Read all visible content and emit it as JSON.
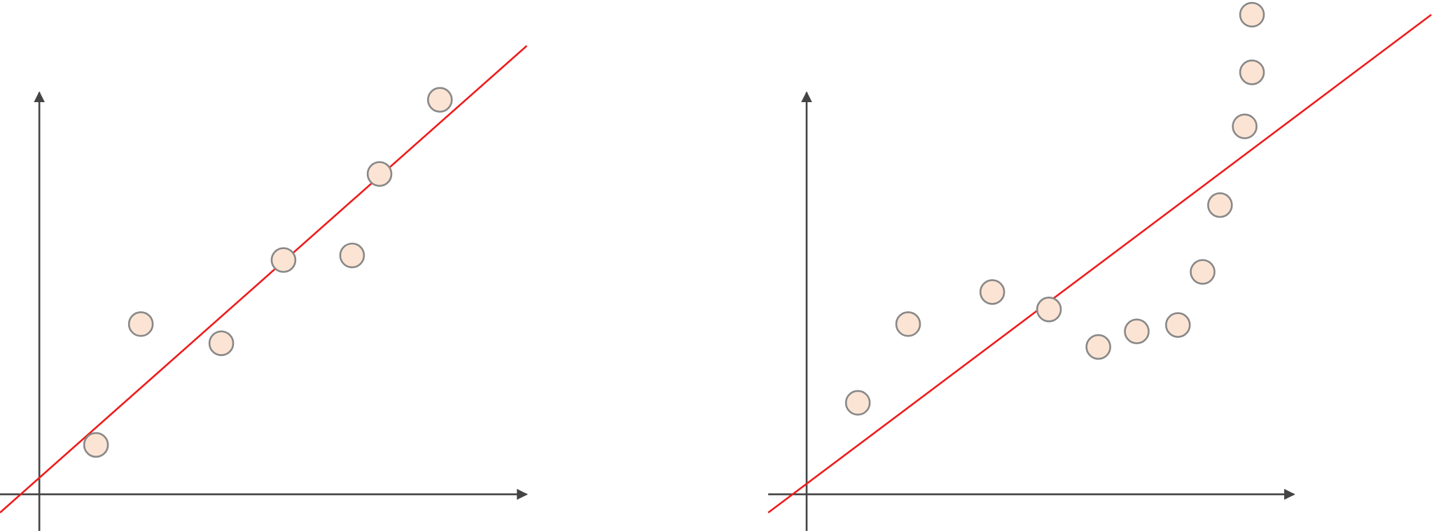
{
  "chart_data": [
    {
      "type": "scatter",
      "xlim": [
        -0.86,
        10.66
      ],
      "ylim": [
        -0.8,
        10.8
      ],
      "series": [
        {
          "color": "#fce4d4",
          "x": [
            1.24,
            2.22,
            3.98,
            5.34,
            6.84,
            7.44,
            8.76
          ],
          "values": [
            1.08,
            3.72,
            3.3,
            5.12,
            5.22,
            7.0,
            8.62
          ]
        }
      ],
      "trend": {
        "type": "line",
        "color": "#ee1c1c",
        "x": [
          -0.86,
          10.66
        ],
        "values": [
          -0.4,
          9.8
        ]
      }
    },
    {
      "type": "scatter",
      "xlim": [
        -0.84,
        13.72
      ],
      "ylim": [
        -0.8,
        10.8
      ],
      "series": [
        {
          "color": "#fce4d4",
          "x": [
            1.12,
            2.22,
            4.06,
            5.3,
            6.38,
            7.22,
            8.12,
            8.66,
            9.04,
            9.58,
            9.74,
            9.74
          ],
          "values": [
            2.0,
            3.72,
            4.42,
            4.04,
            3.22,
            3.56,
            3.7,
            4.86,
            6.32,
            8.04,
            9.22,
            10.48
          ]
        }
      ],
      "trend": {
        "type": "line",
        "color": "#ee1c1c",
        "x": [
          -0.84,
          13.66
        ],
        "values": [
          -0.4,
          10.48
        ]
      }
    }
  ]
}
